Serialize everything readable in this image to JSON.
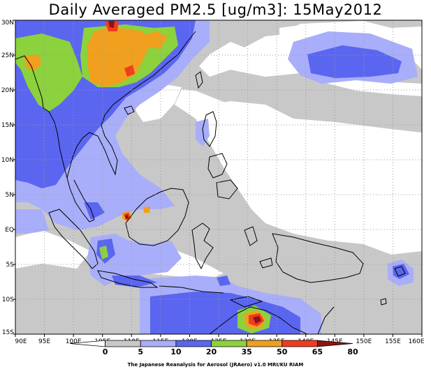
{
  "title": "Daily Averaged PM2.5 [ug/m3]: 15May2012",
  "credit": "The Japanese Reanalysis for Aerosol (JRAero) v1.0 MRI/KU RIAM",
  "map": {
    "lon_range": [
      90,
      160
    ],
    "lat_range": [
      -15,
      30
    ],
    "x_ticks": [
      "90E",
      "95E",
      "100E",
      "105E",
      "110E",
      "115E",
      "120E",
      "125E",
      "130E",
      "135E",
      "140E",
      "145E",
      "150E",
      "155E",
      "160E"
    ],
    "y_ticks": [
      "15S",
      "10S",
      "5S",
      "EQ",
      "5N",
      "10N",
      "15N",
      "20N",
      "25N",
      "30N"
    ],
    "gridlines": "dotted every 5 degrees",
    "background_color": "#ffffff"
  },
  "colorbar": {
    "levels": [
      "0",
      "5",
      "10",
      "20",
      "35",
      "50",
      "65",
      "80"
    ],
    "colors": [
      "#ffffff",
      "#c8c8c8",
      "#a9aefa",
      "#5a66f0",
      "#8cd23c",
      "#f0a01e",
      "#f03c1e",
      "#8c1414"
    ]
  },
  "classes": {
    "light_gray": "#c8c8c8",
    "light_blue": "#a9aefa",
    "blue": "#5a66f0",
    "green": "#8cd23c",
    "orange": "#f0a01e",
    "red": "#f03c1e",
    "dark_red": "#8c1414"
  }
}
